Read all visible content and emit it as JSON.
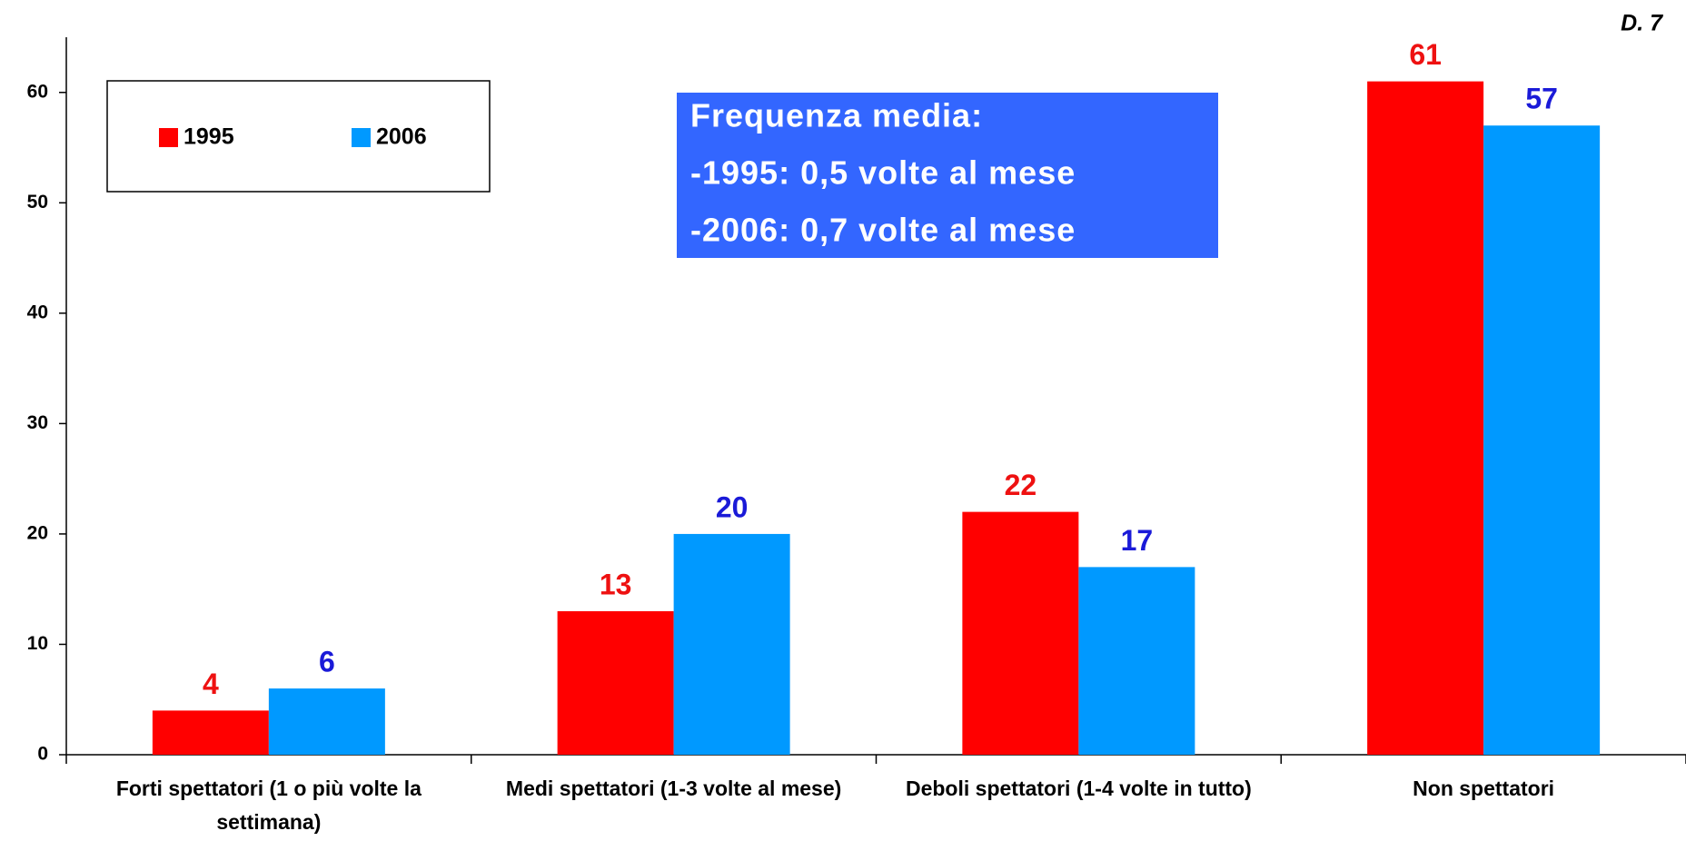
{
  "chart_data": {
    "type": "bar",
    "corner_label": "D. 7",
    "categories": [
      "Forti spettatori (1 o più volte la settimana)",
      "Medi spettatori (1-3 volte al mese)",
      "Deboli spettatori (1-4 volte in tutto)",
      "Non spettatori"
    ],
    "series": [
      {
        "name": "1995",
        "color": "#ff0000",
        "label_color": "#ee1111",
        "values": [
          4,
          13,
          22,
          61
        ]
      },
      {
        "name": "2006",
        "color": "#0099ff",
        "label_color": "#1a1ad8",
        "values": [
          6,
          20,
          17,
          57
        ]
      }
    ],
    "annotation": {
      "lines": [
        "Frequenza media:",
        "-1995: 0,5 volte al mese",
        "-2006: 0,7 volte al mese"
      ],
      "background": "#3366ff"
    },
    "ylim": [
      0,
      65
    ],
    "yticks": [
      0,
      10,
      20,
      30,
      40,
      50,
      60
    ],
    "legend": "top-left",
    "grid": false
  }
}
